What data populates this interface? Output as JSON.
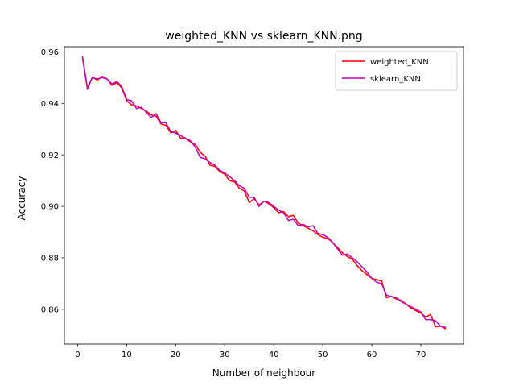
{
  "chart_data": {
    "type": "line",
    "title": "weighted_KNN vs sklearn_KNN.png",
    "xlabel": "Number of neighbour",
    "ylabel": "Accuracy",
    "xlim": [
      -2.7,
      78.7
    ],
    "ylim": [
      0.8465,
      0.962
    ],
    "xticks": [
      0,
      10,
      20,
      30,
      40,
      50,
      60,
      70
    ],
    "xtick_labels": [
      "0",
      "10",
      "20",
      "30",
      "40",
      "50",
      "60",
      "70"
    ],
    "yticks": [
      0.86,
      0.88,
      0.9,
      0.92,
      0.94,
      0.96
    ],
    "ytick_labels": [
      "0.86",
      "0.88",
      "0.90",
      "0.92",
      "0.94",
      "0.96"
    ],
    "grid": false,
    "legend_position": "top-right",
    "series": [
      {
        "name": "weighted_KNN",
        "color": "#ff0000",
        "x": [
          1,
          2,
          3,
          4,
          5,
          6,
          7,
          8,
          9,
          10,
          11,
          12,
          13,
          14,
          15,
          16,
          17,
          18,
          19,
          20,
          21,
          22,
          23,
          24,
          25,
          26,
          27,
          28,
          29,
          30,
          31,
          32,
          33,
          34,
          35,
          36,
          37,
          38,
          39,
          40,
          41,
          42,
          43,
          44,
          45,
          46,
          47,
          48,
          49,
          50,
          51,
          52,
          53,
          54,
          55,
          56,
          57,
          58,
          59,
          60,
          61,
          62,
          63,
          64,
          65,
          66,
          67,
          68,
          69,
          70,
          71,
          72,
          73,
          74,
          75
        ],
        "y": [
          0.9575,
          0.9455,
          0.9502,
          0.949,
          0.9505,
          0.9495,
          0.947,
          0.948,
          0.946,
          0.941,
          0.9395,
          0.939,
          0.938,
          0.937,
          0.9355,
          0.935,
          0.932,
          0.9315,
          0.9285,
          0.9295,
          0.9265,
          0.9265,
          0.925,
          0.924,
          0.921,
          0.9195,
          0.916,
          0.9155,
          0.9135,
          0.9125,
          0.91,
          0.9095,
          0.907,
          0.906,
          0.9015,
          0.903,
          0.9005,
          0.902,
          0.901,
          0.8995,
          0.8975,
          0.898,
          0.896,
          0.8965,
          0.8935,
          0.8925,
          0.8915,
          0.8905,
          0.889,
          0.888,
          0.8875,
          0.886,
          0.884,
          0.882,
          0.8805,
          0.8795,
          0.877,
          0.875,
          0.8735,
          0.872,
          0.8715,
          0.871,
          0.8645,
          0.865,
          0.864,
          0.8635,
          0.862,
          0.8605,
          0.8595,
          0.8585,
          0.857,
          0.858,
          0.8532,
          0.8535,
          0.8525
        ]
      },
      {
        "name": "sklearn_KNN",
        "color": "#bf00bf",
        "x": [
          1,
          2,
          3,
          4,
          5,
          6,
          7,
          8,
          9,
          10,
          11,
          12,
          13,
          14,
          15,
          16,
          17,
          18,
          19,
          20,
          21,
          22,
          23,
          24,
          25,
          26,
          27,
          28,
          29,
          30,
          31,
          32,
          33,
          34,
          35,
          36,
          37,
          38,
          39,
          40,
          41,
          42,
          43,
          44,
          45,
          46,
          47,
          48,
          49,
          50,
          51,
          52,
          53,
          54,
          55,
          56,
          57,
          58,
          59,
          60,
          61,
          62,
          63,
          64,
          65,
          66,
          67,
          68,
          69,
          70,
          71,
          72,
          73,
          74,
          75
        ],
        "y": [
          0.958,
          0.946,
          0.95,
          0.9495,
          0.95,
          0.9495,
          0.9475,
          0.9485,
          0.9465,
          0.9415,
          0.941,
          0.938,
          0.9385,
          0.9365,
          0.9345,
          0.936,
          0.9325,
          0.9325,
          0.929,
          0.9285,
          0.9275,
          0.9265,
          0.9255,
          0.923,
          0.919,
          0.9185,
          0.917,
          0.916,
          0.914,
          0.913,
          0.9115,
          0.91,
          0.908,
          0.907,
          0.9035,
          0.9035,
          0.9,
          0.902,
          0.9015,
          0.9,
          0.8985,
          0.8975,
          0.8945,
          0.895,
          0.8925,
          0.893,
          0.892,
          0.8925,
          0.8895,
          0.889,
          0.888,
          0.886,
          0.8835,
          0.881,
          0.8815,
          0.88,
          0.8785,
          0.8765,
          0.8745,
          0.872,
          0.8705,
          0.87,
          0.8655,
          0.865,
          0.8645,
          0.863,
          0.862,
          0.861,
          0.86,
          0.859,
          0.856,
          0.856,
          0.8555,
          0.8535,
          0.853
        ]
      }
    ]
  }
}
